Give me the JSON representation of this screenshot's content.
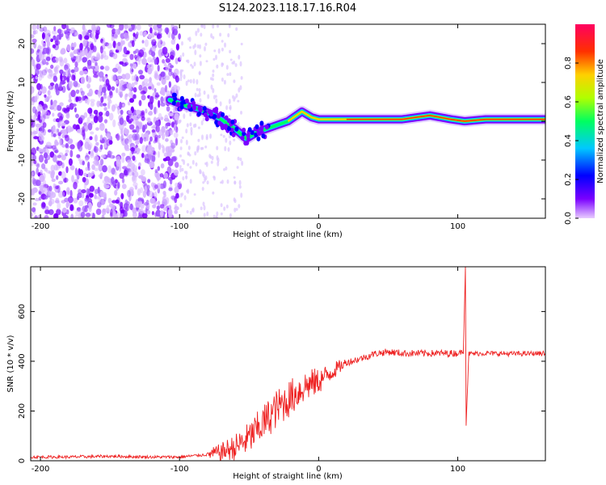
{
  "title": "S124.2023.118.17.16.R04",
  "chart_data": [
    {
      "type": "heatmap",
      "xlabel": "Height of straight line (km)",
      "ylabel": "Frequency (Hz)",
      "xlim": [
        -207,
        163
      ],
      "ylim": [
        -25,
        25
      ],
      "x_ticks": [
        -200,
        -100,
        0,
        100
      ],
      "y_ticks": [
        -20,
        -10,
        0,
        10,
        20
      ],
      "colorbar": {
        "label": "Normalized spectral amplitude",
        "range": [
          0.0,
          1.0
        ],
        "ticks": [
          "0.0",
          "0.2",
          "0.4",
          "0.6",
          "0.8"
        ],
        "colormap": [
          "#e8ccff",
          "#7a00ff",
          "#0000ff",
          "#00c8ff",
          "#00ff60",
          "#b0ff00",
          "#ffd000",
          "#ff3000",
          "#ff0060"
        ]
      },
      "ridge_frequency_hz": [
        {
          "x": -107,
          "f": 5.5
        },
        {
          "x": -95,
          "f": 4
        },
        {
          "x": -85,
          "f": 3
        },
        {
          "x": -75,
          "f": 1.5
        },
        {
          "x": -68,
          "f": 0
        },
        {
          "x": -60,
          "f": -2
        },
        {
          "x": -52,
          "f": -4.5
        },
        {
          "x": -45,
          "f": -3
        },
        {
          "x": -38,
          "f": -2
        },
        {
          "x": -30,
          "f": -1
        },
        {
          "x": -22,
          "f": 0
        },
        {
          "x": -12,
          "f": 2.5
        },
        {
          "x": -5,
          "f": 1
        },
        {
          "x": 0,
          "f": 0.5
        },
        {
          "x": 20,
          "f": 0.5
        },
        {
          "x": 60,
          "f": 0.5
        },
        {
          "x": 80,
          "f": 1.5
        },
        {
          "x": 95,
          "f": 0.5
        },
        {
          "x": 105,
          "f": 0
        },
        {
          "x": 120,
          "f": 0.5
        },
        {
          "x": 163,
          "f": 0.5
        }
      ]
    },
    {
      "type": "line",
      "xlabel": "Height of straight line (km)",
      "ylabel": "SNR (10 * v/v)",
      "xlim": [
        -207,
        163
      ],
      "ylim": [
        0,
        780
      ],
      "x_ticks": [
        -200,
        -100,
        0,
        100
      ],
      "y_ticks": [
        0,
        200,
        400,
        600
      ],
      "series": [
        {
          "color": "#ee2222",
          "x": [
            -207,
            -180,
            -150,
            -120,
            -100,
            -80,
            -70,
            -60,
            -50,
            -40,
            -30,
            -20,
            -10,
            0,
            10,
            20,
            30,
            40,
            50,
            60,
            80,
            95,
            100,
            104,
            105.5,
            106,
            108,
            120,
            140,
            163
          ],
          "y": [
            15,
            15,
            18,
            15,
            15,
            25,
            35,
            55,
            90,
            150,
            210,
            255,
            300,
            320,
            360,
            395,
            410,
            430,
            438,
            432,
            432,
            432,
            432,
            440,
            780,
            150,
            430,
            432,
            430,
            432
          ]
        }
      ]
    }
  ]
}
